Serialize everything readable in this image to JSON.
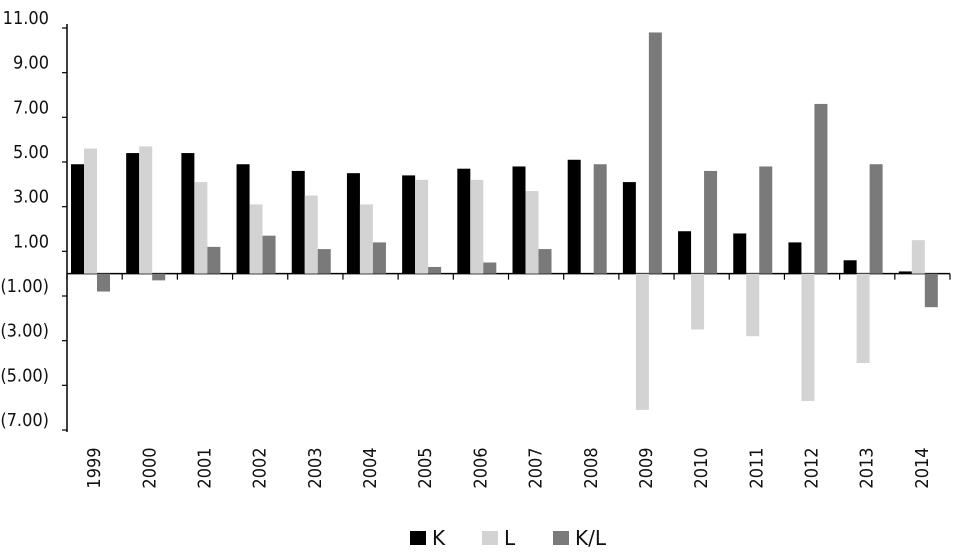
{
  "chart_data": {
    "type": "bar",
    "title": "",
    "xlabel": "",
    "ylabel": "",
    "ylim": [
      -7,
      11
    ],
    "yticks": [
      11,
      9,
      7,
      5,
      3,
      1,
      -1,
      -3,
      -5,
      -7
    ],
    "ytick_labels": [
      "11.00",
      "9.00",
      "7.00",
      "5.00",
      "3.00",
      "1.00",
      "(1.00)",
      "(3.00)",
      "(5.00)",
      "(7.00)"
    ],
    "categories": [
      "1999",
      "2000",
      "2001",
      "2002",
      "2003",
      "2004",
      "2005",
      "2006",
      "2007",
      "2008",
      "2009",
      "2010",
      "2011",
      "2012",
      "2013",
      "2014"
    ],
    "series": [
      {
        "name": "K",
        "color": "#000000",
        "values": [
          4.9,
          5.4,
          5.4,
          4.9,
          4.6,
          4.5,
          4.4,
          4.7,
          4.8,
          5.1,
          4.1,
          1.9,
          1.8,
          1.4,
          0.6,
          0.1
        ]
      },
      {
        "name": "L",
        "color": "#d3d3d3",
        "values": [
          5.6,
          5.7,
          4.1,
          3.1,
          3.5,
          3.1,
          4.2,
          4.2,
          3.7,
          0.0,
          -6.1,
          -2.5,
          -2.8,
          -5.7,
          -4.0,
          1.5
        ]
      },
      {
        "name": "K/L",
        "color": "#7a7a7a",
        "values": [
          -0.8,
          -0.3,
          1.2,
          1.7,
          1.1,
          1.4,
          0.3,
          0.5,
          1.1,
          4.9,
          10.8,
          4.6,
          4.8,
          7.6,
          4.9,
          -1.5
        ]
      }
    ],
    "grid": false,
    "legend_position": "bottom-center"
  }
}
